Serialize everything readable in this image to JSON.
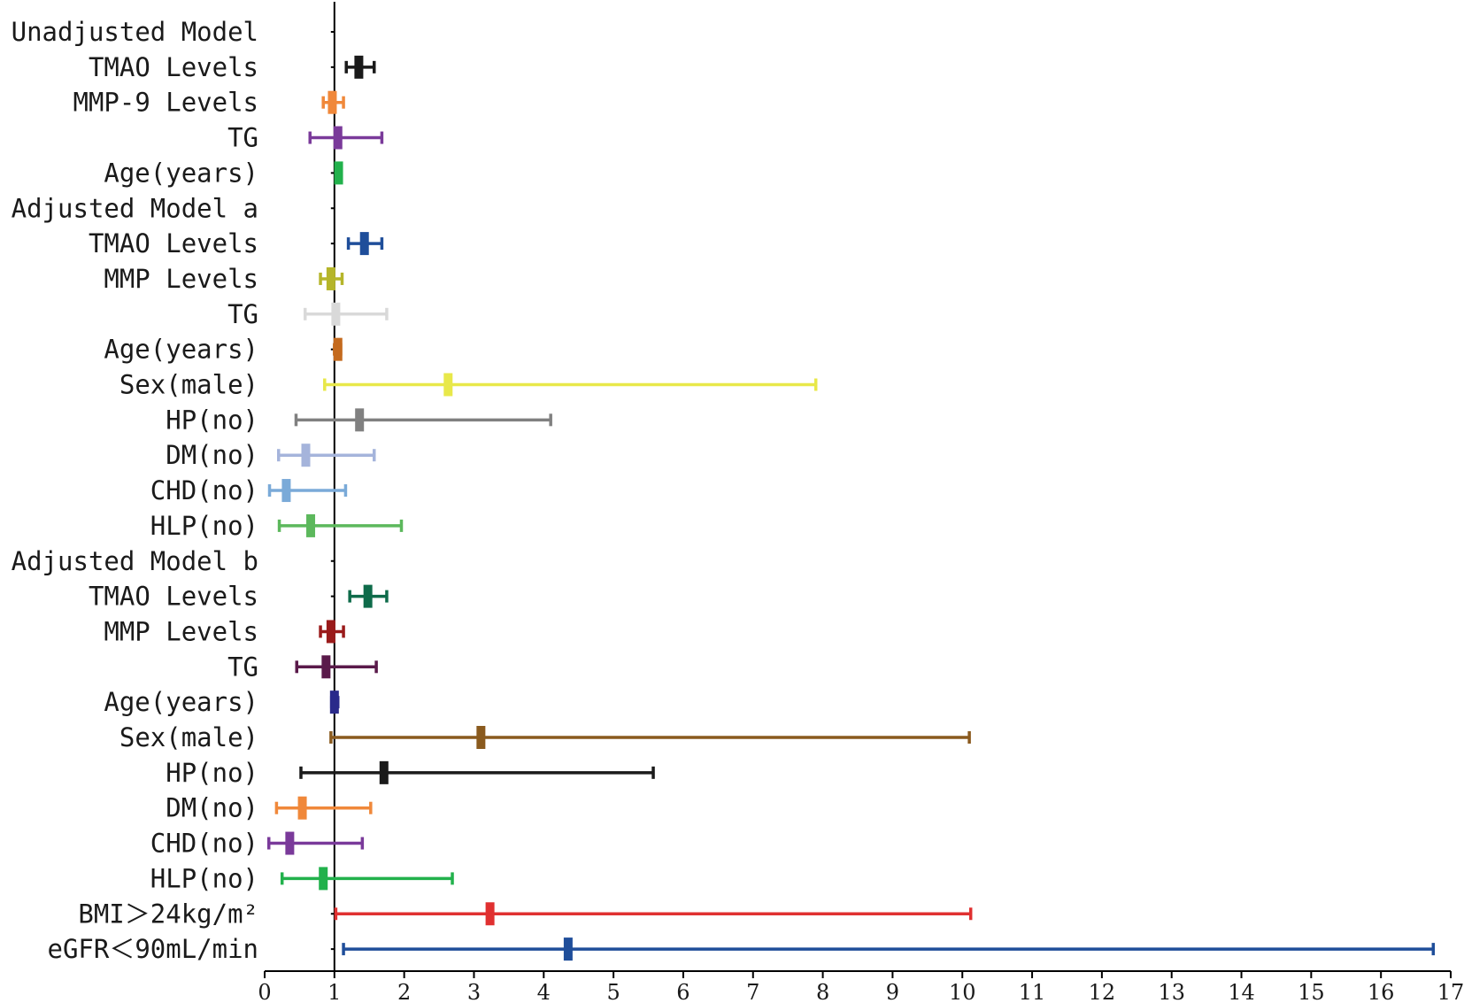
{
  "chart_data": {
    "type": "forest",
    "title": "",
    "xlabel": "",
    "ylabel": "",
    "xlim": [
      0,
      17
    ],
    "reference_line": 1,
    "x_ticks": [
      0,
      1,
      2,
      3,
      4,
      5,
      6,
      7,
      8,
      9,
      10,
      11,
      12,
      13,
      14,
      15,
      16,
      17
    ],
    "rows": [
      {
        "label": "Unadjusted Model",
        "header": true
      },
      {
        "label": "TMAO Levels",
        "estimate": 1.35,
        "lower": 1.17,
        "upper": 1.57,
        "color": "#1a1a1a"
      },
      {
        "label": "MMP-9 Levels",
        "estimate": 0.97,
        "lower": 0.84,
        "upper": 1.13,
        "color": "#f0883a"
      },
      {
        "label": "TG",
        "estimate": 1.05,
        "lower": 0.65,
        "upper": 1.68,
        "color": "#7a3a9a"
      },
      {
        "label": "Age(years)",
        "estimate": 1.06,
        "lower": 1.02,
        "upper": 1.09,
        "color": "#22b14c"
      },
      {
        "label": "Adjusted Model a",
        "header": true
      },
      {
        "label": "TMAO Levels",
        "estimate": 1.43,
        "lower": 1.2,
        "upper": 1.68,
        "color": "#1f4e9a"
      },
      {
        "label": "MMP Levels",
        "estimate": 0.95,
        "lower": 0.8,
        "upper": 1.11,
        "color": "#b5b52a"
      },
      {
        "label": "TG",
        "estimate": 1.02,
        "lower": 0.58,
        "upper": 1.75,
        "color": "#d9d9d9"
      },
      {
        "label": "Age(years)",
        "estimate": 1.05,
        "lower": 1.0,
        "upper": 1.09,
        "color": "#c46a1e"
      },
      {
        "label": "Sex(male)",
        "estimate": 2.63,
        "lower": 0.86,
        "upper": 7.9,
        "color": "#e8e84a"
      },
      {
        "label": "HP(no)",
        "estimate": 1.36,
        "lower": 0.45,
        "upper": 4.1,
        "color": "#808080"
      },
      {
        "label": "DM(no)",
        "estimate": 0.59,
        "lower": 0.2,
        "upper": 1.57,
        "color": "#a5b4db"
      },
      {
        "label": "CHD(no)",
        "estimate": 0.31,
        "lower": 0.07,
        "upper": 1.16,
        "color": "#7aaad8"
      },
      {
        "label": "HLP(no)",
        "estimate": 0.66,
        "lower": 0.21,
        "upper": 1.96,
        "color": "#5cb85c"
      },
      {
        "label": "Adjusted Model b",
        "header": true
      },
      {
        "label": "TMAO Levels",
        "estimate": 1.48,
        "lower": 1.22,
        "upper": 1.75,
        "color": "#0e6b4a"
      },
      {
        "label": "MMP Levels",
        "estimate": 0.95,
        "lower": 0.8,
        "upper": 1.13,
        "color": "#9a1a1a"
      },
      {
        "label": "TG",
        "estimate": 0.88,
        "lower": 0.46,
        "upper": 1.6,
        "color": "#5a1a4a"
      },
      {
        "label": "Age(years)",
        "estimate": 1.0,
        "lower": 0.96,
        "upper": 1.05,
        "color": "#2a2a8a"
      },
      {
        "label": "Sex(male)",
        "estimate": 3.1,
        "lower": 0.95,
        "upper": 10.1,
        "color": "#8a5a1e"
      },
      {
        "label": "HP(no)",
        "estimate": 1.71,
        "lower": 0.52,
        "upper": 5.57,
        "color": "#1a1a1a"
      },
      {
        "label": "DM(no)",
        "estimate": 0.54,
        "lower": 0.17,
        "upper": 1.52,
        "color": "#f0883a"
      },
      {
        "label": "CHD(no)",
        "estimate": 0.36,
        "lower": 0.06,
        "upper": 1.4,
        "color": "#7a3a9a"
      },
      {
        "label": "HLP(no)",
        "estimate": 0.84,
        "lower": 0.25,
        "upper": 2.69,
        "color": "#22b14c"
      },
      {
        "label": "BMI＞24kg/m²",
        "estimate": 3.23,
        "lower": 1.02,
        "upper": 10.12,
        "color": "#e03030"
      },
      {
        "label": "eGFR＜90mL/min",
        "estimate": 4.35,
        "lower": 1.13,
        "upper": 16.75,
        "color": "#1f4e9a"
      }
    ]
  }
}
